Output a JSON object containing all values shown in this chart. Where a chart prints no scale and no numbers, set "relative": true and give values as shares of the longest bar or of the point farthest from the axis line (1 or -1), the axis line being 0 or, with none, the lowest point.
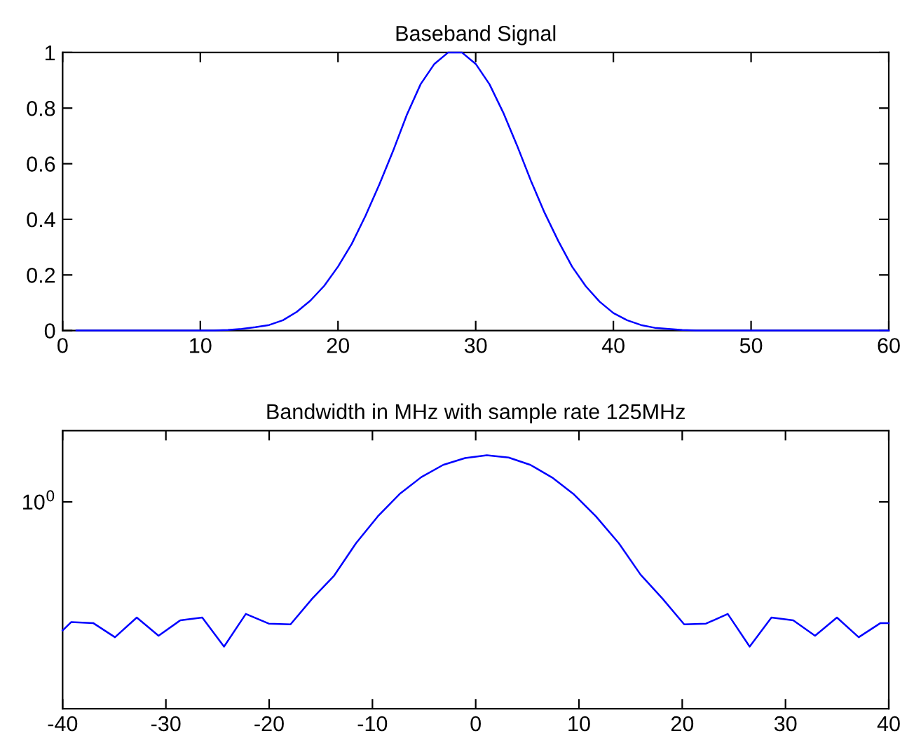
{
  "chart_data": [
    {
      "type": "line",
      "title": "Baseband Signal",
      "x": [
        1,
        2,
        3,
        4,
        5,
        6,
        7,
        8,
        9,
        10,
        11,
        12,
        13,
        14,
        15,
        16,
        17,
        18,
        19,
        20,
        21,
        22,
        23,
        24,
        25,
        26,
        27,
        28,
        29,
        30,
        31,
        32,
        33,
        34,
        35,
        36,
        37,
        38,
        39,
        40,
        41,
        42,
        43,
        44,
        45,
        46,
        47,
        48,
        49,
        50,
        51,
        52,
        53,
        54,
        55,
        56,
        57,
        58,
        59,
        60
      ],
      "series": [
        {
          "color": "#0000ff",
          "values": [
            0,
            0,
            0,
            0,
            0,
            0,
            0,
            0,
            0,
            0,
            0,
            0.002,
            0.006,
            0.012,
            0.02,
            0.037,
            0.067,
            0.108,
            0.161,
            0.23,
            0.312,
            0.413,
            0.525,
            0.646,
            0.776,
            0.886,
            0.959,
            1.0,
            1.0,
            0.959,
            0.886,
            0.784,
            0.666,
            0.54,
            0.424,
            0.322,
            0.23,
            0.159,
            0.104,
            0.063,
            0.037,
            0.02,
            0.01,
            0.006,
            0.002,
            0,
            0,
            0,
            0,
            0,
            0,
            0,
            0,
            0,
            0,
            0,
            0,
            0,
            0,
            0
          ]
        }
      ],
      "xlim": [
        0,
        60
      ],
      "xticks": [
        0,
        10,
        20,
        30,
        40,
        50,
        60
      ],
      "ylim": [
        0,
        1
      ],
      "yticks": [
        0,
        0.2,
        0.4,
        0.6,
        0.8,
        1
      ],
      "grid": false,
      "legend": false
    },
    {
      "type": "line",
      "title": "Bandwidth in MHz with sample rate 125MHz",
      "relative": true,
      "x": [
        -40,
        -39.16,
        -37.04,
        -34.93,
        -32.82,
        -30.71,
        -28.6,
        -26.48,
        -24.37,
        -22.26,
        -20.04,
        -17.93,
        -15.82,
        -13.71,
        -11.59,
        -9.48,
        -7.37,
        -5.26,
        -3.15,
        -1.03,
        1.08,
        3.19,
        5.3,
        7.41,
        9.53,
        11.64,
        13.86,
        15.97,
        18.08,
        20.19,
        22.3,
        24.41,
        26.53,
        28.64,
        30.75,
        32.86,
        34.98,
        37.09,
        39.2,
        40
      ],
      "series": [
        {
          "color": "#0000ff",
          "values": [
            0.309,
            0.342,
            0.338,
            0.282,
            0.36,
            0.288,
            0.349,
            0.36,
            0.245,
            0.374,
            0.336,
            0.333,
            0.435,
            0.525,
            0.653,
            0.759,
            0.847,
            0.914,
            0.962,
            0.989,
            1,
            0.991,
            0.962,
            0.912,
            0.845,
            0.759,
            0.653,
            0.529,
            0.435,
            0.333,
            0.336,
            0.374,
            0.245,
            0.36,
            0.349,
            0.288,
            0.36,
            0.282,
            0.338,
            0.338
          ]
        }
      ],
      "xlim": [
        -40,
        40
      ],
      "xticks": [
        -40,
        -30,
        -20,
        -10,
        0,
        10,
        20,
        30,
        40
      ],
      "annotations": [
        "10$^{0}$"
      ],
      "grid": false,
      "legend": false
    }
  ]
}
